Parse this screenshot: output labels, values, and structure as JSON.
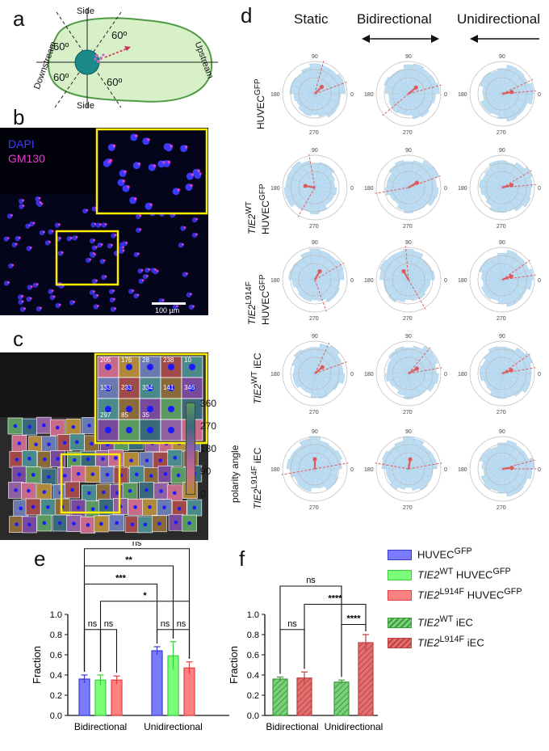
{
  "panels": {
    "a": "a",
    "b": "b",
    "c": "c",
    "d": "d",
    "e": "e",
    "f": "f"
  },
  "panel_a": {
    "side_top": "Side",
    "side_bottom": "Side",
    "downstream": "Downstream",
    "upstream": "Upstream",
    "angles": [
      "60º",
      "60º",
      "60º",
      "60º"
    ],
    "colors": {
      "cell": "#d8f0c8",
      "border": "#4f9a46",
      "nucleus": "#1a8a8a"
    }
  },
  "panel_b": {
    "dapi": "DAPI",
    "gm130": "GM130",
    "scale": "100 µm",
    "colors": {
      "dapi": "#3a3aff",
      "gm130": "#e23ccf",
      "box": "#ffee00"
    }
  },
  "panel_c": {
    "colorbar_label": "polarity angle",
    "ticks": [
      "360",
      "270",
      "180",
      "90",
      "0"
    ],
    "cell_numbers": [
      "205",
      "176",
      "28",
      "238",
      "10",
      "133",
      "233",
      "334",
      "141",
      "346",
      "297",
      "85",
      "35"
    ]
  },
  "panel_d": {
    "columns": [
      {
        "title": "Static",
        "arrow": ""
      },
      {
        "title": "Bidirectional",
        "arrow": "double"
      },
      {
        "title": "Unidirectional",
        "arrow": "left"
      }
    ],
    "rows": [
      {
        "label_main": "HUVEC",
        "label_sup": "GFP",
        "label_pre": "",
        "label_pre_sup": "",
        "label_post": ""
      },
      {
        "label_main": "HUVEC",
        "label_sup": "GFP",
        "label_pre": "TIE2",
        "label_pre_sup": "WT",
        "label_post": ""
      },
      {
        "label_main": "HUVEC",
        "label_sup": "GFP",
        "label_pre": "TIE2",
        "label_pre_sup": "L914F",
        "label_post": ""
      },
      {
        "label_main": " iEC",
        "label_sup": "",
        "label_pre": "TIE2",
        "label_pre_sup": "WT",
        "label_post": ""
      },
      {
        "label_main": " iEC",
        "label_sup": "",
        "label_pre": "TIE2",
        "label_pre_sup": "L914F",
        "label_post": ""
      }
    ],
    "angle_labels": {
      "top": "90",
      "left": "180",
      "right": "0",
      "bottom": "270"
    },
    "colors": {
      "fill": "#bcdcf2",
      "arrow": "#e05a5a",
      "ring": "#bbbbbb"
    },
    "roses": [
      {
        "mean": 45,
        "conf": [
          20,
          75
        ]
      },
      {
        "mean": 40,
        "conf": [
          15,
          220
        ]
      },
      {
        "mean": 10,
        "conf": [
          5,
          25
        ]
      },
      {
        "mean": 170,
        "conf": [
          100,
          240
        ]
      },
      {
        "mean": 30,
        "conf": [
          20,
          190
        ]
      },
      {
        "mean": 15,
        "conf": [
          5,
          30
        ]
      },
      {
        "mean": 60,
        "conf": [
          30,
          290
        ]
      },
      {
        "mean": 120,
        "conf": [
          95,
          300
        ]
      },
      {
        "mean": 20,
        "conf": [
          8,
          35
        ]
      },
      {
        "mean": 40,
        "conf": [
          20,
          65
        ]
      },
      {
        "mean": 30,
        "conf": [
          10,
          50
        ]
      },
      {
        "mean": 20,
        "conf": [
          10,
          35
        ]
      },
      {
        "mean": 90,
        "conf": [
          10,
          190
        ]
      },
      {
        "mean": 80,
        "conf": [
          10,
          170
        ]
      },
      {
        "mean": 5,
        "conf": [
          0,
          15
        ]
      }
    ]
  },
  "legend": {
    "items": [
      {
        "pre": "",
        "pre_sup": "",
        "main": "HUVEC",
        "sup": "GFP",
        "color": "#7b7bff",
        "border": "#3b3bd0",
        "hatch": false
      },
      {
        "pre": "TIE2",
        "pre_sup": "WT",
        "main": " HUVEC",
        "sup": "GFP",
        "color": "#7bff7b",
        "border": "#3bd03b",
        "hatch": false
      },
      {
        "pre": "TIE2",
        "pre_sup": "L914F",
        "main": " HUVEC",
        "sup": "GFP",
        "color": "#ff8080",
        "border": "#e04040",
        "hatch": false
      },
      {
        "pre": "TIE2",
        "pre_sup": "WT",
        "main": " iEC",
        "sup": "",
        "color": "#7bd07b",
        "border": "#3b9b3b",
        "hatch": true
      },
      {
        "pre": "TIE2",
        "pre_sup": "L914F",
        "main": " iEC",
        "sup": "",
        "color": "#e07070",
        "border": "#c04040",
        "hatch": true
      }
    ]
  },
  "chart_data": [
    {
      "type": "bar",
      "panel": "e",
      "categories": [
        "Bidirectional",
        "Unidirectional"
      ],
      "series": [
        {
          "name": "HUVECGFP",
          "values": [
            0.36,
            0.64
          ],
          "err": [
            0.04,
            0.04
          ],
          "color": "#7b7bff",
          "border": "#3b3bd0"
        },
        {
          "name": "TIE2WT HUVECGFP",
          "values": [
            0.35,
            0.59
          ],
          "err": [
            0.05,
            0.14
          ],
          "color": "#7bff7b",
          "border": "#3bd03b"
        },
        {
          "name": "TIE2L914F HUVECGFP",
          "values": [
            0.35,
            0.47
          ],
          "err": [
            0.04,
            0.06
          ],
          "color": "#ff8080",
          "border": "#e04040"
        }
      ],
      "ylabel": "Fraction",
      "ylim": [
        0,
        1.0
      ],
      "yticks": [
        "0.0",
        "0.2",
        "0.4",
        "0.6",
        "0.8",
        "1.0"
      ],
      "significance": [
        "ns",
        "**",
        "***",
        "*",
        "ns",
        "ns",
        "ns",
        "ns"
      ]
    },
    {
      "type": "bar",
      "panel": "f",
      "categories": [
        "Bidirectional",
        "Unidirectional"
      ],
      "series": [
        {
          "name": "TIE2WT iEC",
          "values": [
            0.36,
            0.33
          ],
          "err": [
            0.02,
            0.02
          ],
          "color": "#7bd07b",
          "border": "#3b9b3b"
        },
        {
          "name": "TIE2L914F iEC",
          "values": [
            0.37,
            0.72
          ],
          "err": [
            0.06,
            0.08
          ],
          "color": "#e07070",
          "border": "#c04040"
        }
      ],
      "ylabel": "Fraction",
      "ylim": [
        0,
        1.0
      ],
      "yticks": [
        "0.0",
        "0.2",
        "0.4",
        "0.6",
        "0.8",
        "1.0"
      ],
      "significance": [
        "ns",
        "****",
        "ns",
        "****"
      ]
    }
  ]
}
